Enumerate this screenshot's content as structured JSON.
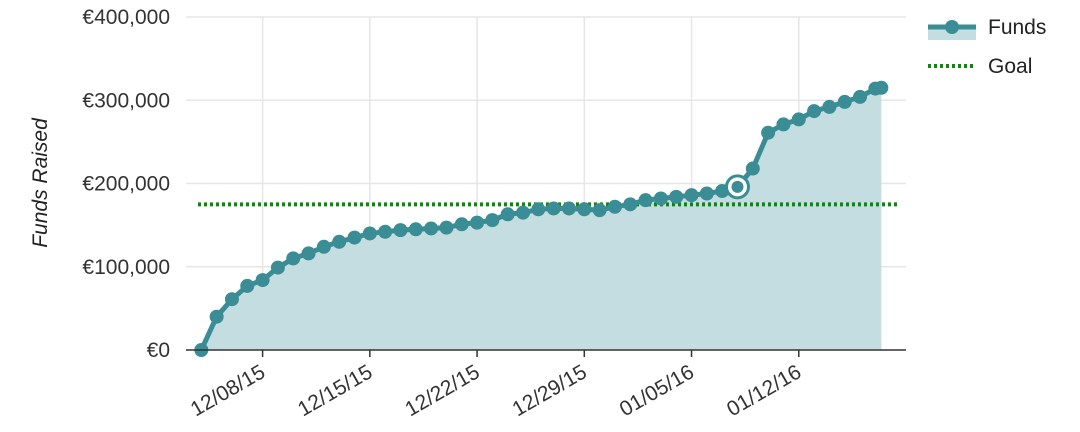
{
  "chart_data": {
    "type": "area",
    "title": "",
    "xlabel": "",
    "ylabel": "Funds Raised",
    "x_tick_labels": [
      "12/08/15",
      "12/15/15",
      "12/22/15",
      "12/29/15",
      "01/05/16",
      "01/12/16"
    ],
    "x_ticks": [
      "2015-12-08",
      "2015-12-15",
      "2015-12-22",
      "2015-12-29",
      "2016-01-05",
      "2016-01-12"
    ],
    "xlim": [
      "2015-12-03",
      "2016-01-19"
    ],
    "y_tick_labels": [
      "€0",
      "€100,000",
      "€200,000",
      "€300,000",
      "€400,000"
    ],
    "y_ticks": [
      0,
      100000,
      200000,
      300000,
      400000
    ],
    "ylim": [
      0,
      400000
    ],
    "grid": true,
    "legend": {
      "position": "top-right",
      "entries": [
        "Funds",
        "Goal"
      ]
    },
    "colors": {
      "funds": "#3a8d95",
      "funds_fill": "#c3dde1",
      "goal": "#0a8a0a",
      "grid": "#e6e6e6",
      "axis": "#333333"
    },
    "series": [
      {
        "name": "Funds",
        "points": [
          [
            "2015-12-04",
            0
          ],
          [
            "2015-12-05",
            40000
          ],
          [
            "2015-12-06",
            61000
          ],
          [
            "2015-12-07",
            77000
          ],
          [
            "2015-12-08",
            84000
          ],
          [
            "2015-12-09",
            99000
          ],
          [
            "2015-12-10",
            110000
          ],
          [
            "2015-12-11",
            116000
          ],
          [
            "2015-12-12",
            124000
          ],
          [
            "2015-12-13",
            130000
          ],
          [
            "2015-12-14",
            135000
          ],
          [
            "2015-12-15",
            140000
          ],
          [
            "2015-12-16",
            142000
          ],
          [
            "2015-12-17",
            144000
          ],
          [
            "2015-12-18",
            145000
          ],
          [
            "2015-12-19",
            146000
          ],
          [
            "2015-12-20",
            147000
          ],
          [
            "2015-12-21",
            151000
          ],
          [
            "2015-12-22",
            153000
          ],
          [
            "2015-12-23",
            156000
          ],
          [
            "2015-12-24",
            163000
          ],
          [
            "2015-12-25",
            165000
          ],
          [
            "2015-12-26",
            169000
          ],
          [
            "2015-12-27",
            170000
          ],
          [
            "2015-12-28",
            170000
          ],
          [
            "2015-12-29",
            169000
          ],
          [
            "2015-12-30",
            168000
          ],
          [
            "2015-12-31",
            172000
          ],
          [
            "2016-01-01",
            175000
          ],
          [
            "2016-01-02",
            180000
          ],
          [
            "2016-01-03",
            182000
          ],
          [
            "2016-01-04",
            184000
          ],
          [
            "2016-01-05",
            186000
          ],
          [
            "2016-01-06",
            188000
          ],
          [
            "2016-01-07",
            191000
          ],
          [
            "2016-01-08",
            196000
          ],
          [
            "2016-01-09",
            218000
          ],
          [
            "2016-01-10",
            261000
          ],
          [
            "2016-01-11",
            271000
          ],
          [
            "2016-01-12",
            277000
          ],
          [
            "2016-01-13",
            287000
          ],
          [
            "2016-01-14",
            292000
          ],
          [
            "2016-01-15",
            298000
          ],
          [
            "2016-01-16",
            304000
          ],
          [
            "2016-01-17",
            314000
          ],
          [
            "2016-01-17",
            315000
          ]
        ],
        "highlighted_point": [
          "2016-01-08",
          196000
        ]
      },
      {
        "name": "Goal",
        "value": 175000,
        "style": "dotted"
      }
    ]
  }
}
